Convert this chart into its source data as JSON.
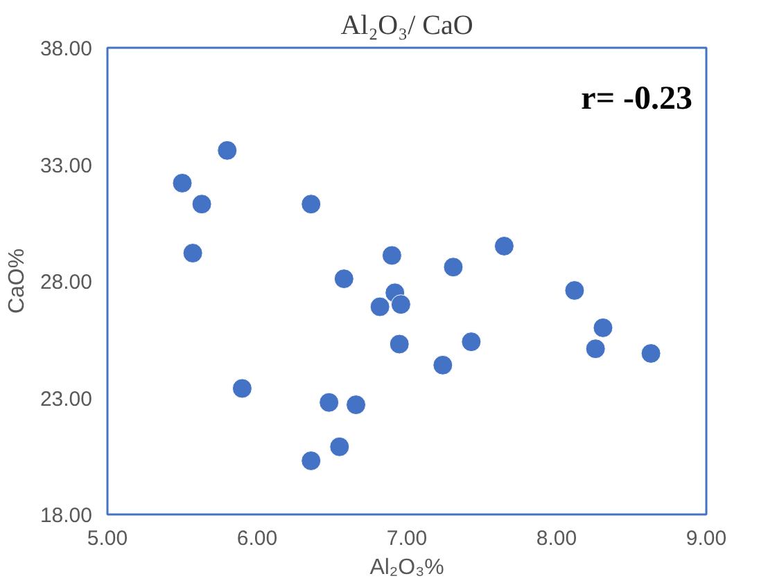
{
  "chart_data": {
    "type": "scatter",
    "title": "Al₂O₃/ CaO",
    "xlabel": "Al₂O₃%",
    "ylabel": "CaO%",
    "x": [
      5.5,
      5.63,
      5.8,
      5.57,
      5.9,
      6.36,
      6.58,
      6.36,
      6.48,
      6.55,
      6.66,
      6.82,
      6.9,
      6.92,
      6.96,
      6.95,
      7.24,
      7.31,
      7.43,
      7.65,
      8.12,
      8.26,
      8.31,
      8.63
    ],
    "values": [
      32.2,
      31.3,
      33.6,
      29.2,
      23.4,
      31.3,
      28.1,
      20.3,
      22.8,
      20.9,
      22.7,
      26.9,
      29.1,
      27.5,
      27.0,
      25.3,
      24.4,
      28.6,
      25.4,
      29.5,
      27.6,
      25.1,
      26.0,
      24.9
    ],
    "color": "#4472c4",
    "marker": "circle",
    "grid": false,
    "legend": false,
    "xlim": [
      5,
      9
    ],
    "ylim": [
      18,
      38
    ],
    "xticks": [
      {
        "value": 5,
        "label": "5.00"
      },
      {
        "value": 6,
        "label": "6.00"
      },
      {
        "value": 7,
        "label": "7.00"
      },
      {
        "value": 8,
        "label": "8.00"
      },
      {
        "value": 9,
        "label": "9.00"
      }
    ],
    "yticks": [
      {
        "value": 18,
        "label": "18.00"
      },
      {
        "value": 23,
        "label": "23.00"
      },
      {
        "value": 28,
        "label": "28.00"
      },
      {
        "value": 33,
        "label": "33.00"
      },
      {
        "value": 38,
        "label": "38.00"
      }
    ],
    "annotations": [
      "r= -0.23"
    ]
  }
}
